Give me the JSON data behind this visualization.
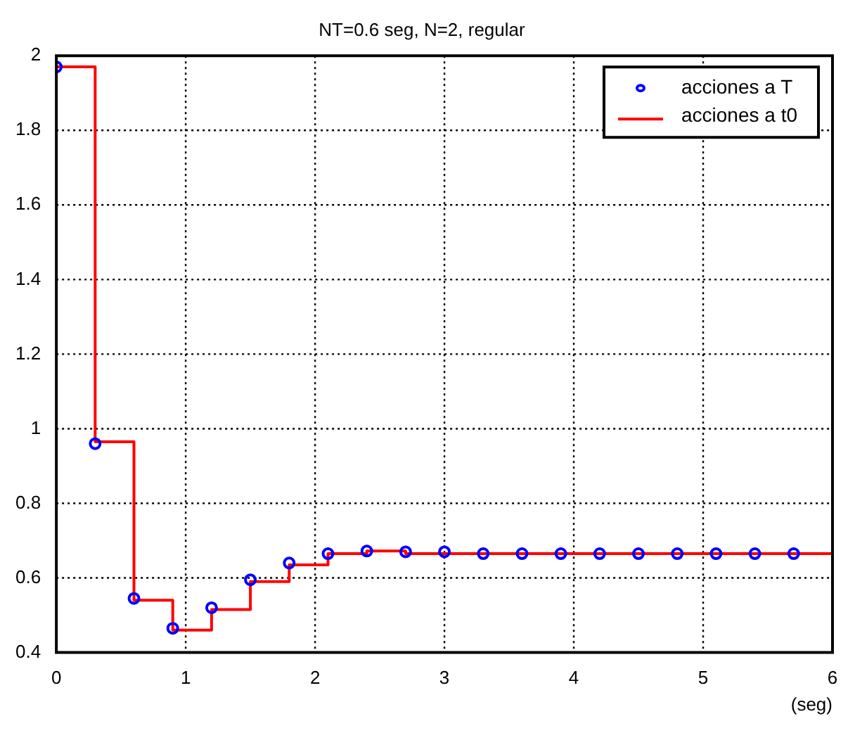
{
  "chart_data": {
    "type": "scatter",
    "title": "NT=0.6 seg, N=2, regular",
    "xlabel": "(seg)",
    "x": [
      0,
      0.3,
      0.6,
      0.9,
      1.2,
      1.5,
      1.8,
      2.1,
      2.4,
      2.7,
      3,
      3.3,
      3.6,
      3.9,
      4.2,
      4.5,
      4.8,
      5.1,
      5.4,
      5.7
    ],
    "series": [
      {
        "name": "acciones a T",
        "type": "scatter",
        "color": "#0000ff",
        "marker": "circle",
        "values": [
          1.97,
          0.96,
          0.545,
          0.465,
          0.52,
          0.595,
          0.64,
          0.665,
          0.672,
          0.67,
          0.67,
          0.665,
          0.665,
          0.665,
          0.665,
          0.665,
          0.665,
          0.665,
          0.665,
          0.665
        ]
      },
      {
        "name": "acciones a t0",
        "type": "step",
        "color": "#ff0000",
        "marker": "none",
        "x": [
          0,
          0.3,
          0.6,
          0.9,
          1.2,
          1.5,
          1.8,
          2.1,
          2.4,
          2.7,
          6
        ],
        "values": [
          1.97,
          0.965,
          0.54,
          0.46,
          0.515,
          0.59,
          0.635,
          0.665,
          0.672,
          0.665,
          0.665
        ]
      }
    ],
    "xlim": [
      0,
      6
    ],
    "xticks": [
      0,
      1,
      2,
      3,
      4,
      5,
      6
    ],
    "ylim": [
      0.4,
      2
    ],
    "yticks": [
      0.4,
      0.6,
      0.8,
      1,
      1.2,
      1.4,
      1.6,
      1.8,
      2
    ],
    "grid": true,
    "legend": "top right"
  }
}
